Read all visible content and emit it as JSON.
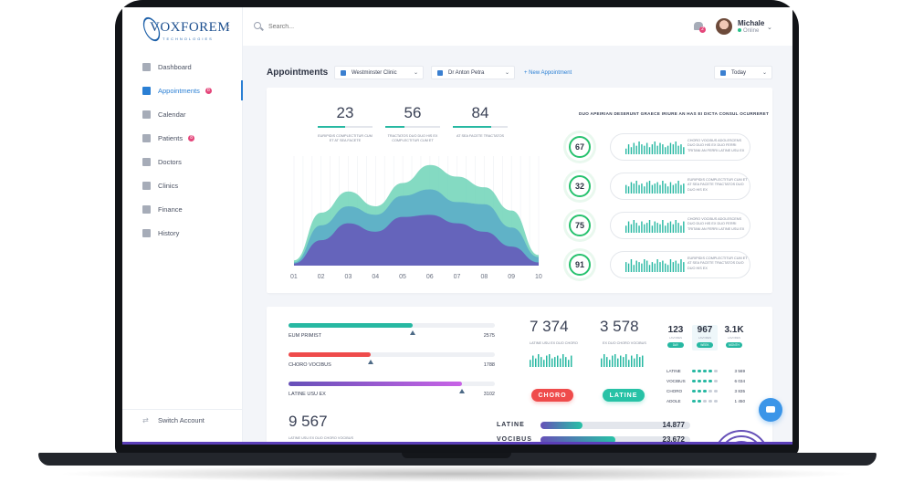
{
  "app": {
    "logo_text": "VOXFOREM",
    "logo_sub": "TECHNOLOGIES"
  },
  "sidebar": {
    "items": [
      {
        "label": "Dashboard",
        "icon": "dashboard-icon"
      },
      {
        "label": "Appointments",
        "icon": "alarm-clock-icon",
        "badge": "8",
        "active": true
      },
      {
        "label": "Calendar",
        "icon": "calendar-icon"
      },
      {
        "label": "Patients",
        "icon": "users-icon",
        "badge": "8"
      },
      {
        "label": "Doctors",
        "icon": "doctor-icon"
      },
      {
        "label": "Clinics",
        "icon": "building-icon"
      },
      {
        "label": "Finance",
        "icon": "chart-icon"
      },
      {
        "label": "History",
        "icon": "document-icon"
      }
    ],
    "switch_account": "Switch Account"
  },
  "topbar": {
    "search_placeholder": "Search...",
    "notification_count": "2",
    "user_name": "Michale",
    "user_status": "Online"
  },
  "toolbar": {
    "title": "Appointments",
    "clinic": "Westminster Clinic",
    "doctor": "Dr Anton Petra",
    "new_appointment": "+ New Appointment",
    "date_range": "Today"
  },
  "kpis": [
    {
      "value": "23",
      "progress": 0.5,
      "label": "EURIPIDIS COMPLECTITUR CUM ET AT SEA FACETE"
    },
    {
      "value": "56",
      "progress": 0.35,
      "label": "TRACTATOS DUO DUO HIS EX COMPLECTITUR CUM ET"
    },
    {
      "value": "84",
      "progress": 0.7,
      "label": "AT SEA FACETE TRACTATOS"
    }
  ],
  "chart_data": {
    "type": "area",
    "categories": [
      "01",
      "02",
      "03",
      "04",
      "05",
      "06",
      "07",
      "08",
      "09",
      "10"
    ],
    "series": [
      {
        "color": "#6fd3b7",
        "values": [
          5,
          50,
          70,
          56,
          78,
          95,
          84,
          74,
          52,
          10
        ]
      },
      {
        "color": "#58a8c8",
        "values": [
          3,
          38,
          56,
          48,
          66,
          72,
          60,
          58,
          36,
          8
        ]
      },
      {
        "color": "#6650b8",
        "values": [
          2,
          24,
          40,
          32,
          46,
          48,
          40,
          32,
          18,
          3
        ]
      }
    ],
    "ylim": [
      0,
      100
    ]
  },
  "right_panel": {
    "title": "DUO APEIRIAN DESERUNT GRAECE IRIURE AN HAS EI DICTA CONSUL OCURRERET",
    "rows": [
      {
        "score": "67",
        "spark": [
          4,
          7,
          5,
          8,
          6,
          9,
          7,
          6,
          8,
          5,
          7,
          9,
          6,
          8,
          7,
          5,
          6,
          8,
          7,
          9,
          6,
          7,
          5
        ],
        "text": "CHORO VOCIBUS ADOLESCENS DUO DUO HIS EX DUO FERRI TRITANI AN FERRI LATINE USU EX"
      },
      {
        "score": "32",
        "spark": [
          6,
          5,
          8,
          7,
          9,
          6,
          7,
          5,
          8,
          9,
          6,
          7,
          8,
          6,
          9,
          7,
          5,
          8,
          6,
          7,
          9,
          6,
          7
        ],
        "text": "EURIPIDIS COMPLECTITUR CUM ET AT SEA FACETE TRACTATOS DUO DUO HIS EX"
      },
      {
        "score": "75",
        "spark": [
          5,
          8,
          6,
          9,
          7,
          5,
          8,
          6,
          7,
          9,
          5,
          8,
          7,
          6,
          9,
          5,
          7,
          8,
          6,
          9,
          7,
          5,
          8
        ],
        "text": "CHORO VOCIBUS ADOLESCENS DUO DUO HIS EX DUO FERRI TRITANI AN FERRI LATINE USU EX"
      },
      {
        "score": "91",
        "spark": [
          7,
          6,
          9,
          5,
          8,
          7,
          6,
          9,
          8,
          5,
          7,
          6,
          9,
          7,
          8,
          6,
          5,
          9,
          7,
          8,
          6,
          9,
          7
        ],
        "text": "EURIPIDIS COMPLECTITUR CUM ET AT SEA FACETE TRACTATOS DUO DUO HIS EX"
      }
    ]
  },
  "progress_bars": [
    {
      "label": "EUM PRIMIST",
      "value": "2575",
      "fill": 0.6,
      "marker": 0.6,
      "color": "#27b8a2"
    },
    {
      "label": "CHORO VOCIBUS",
      "value": "1788",
      "fill": 0.4,
      "marker": 0.4,
      "color": "#ef4b4b"
    },
    {
      "label": "LATINE USU EX",
      "value": "3102",
      "fill": 0.84,
      "marker": 0.84,
      "color": "linear-gradient(90deg,#6650b8,#c863e6)"
    }
  ],
  "stats": {
    "a": {
      "value": "7 374",
      "label": "LATINE USU EX DUO CHORO",
      "button": "CHORO",
      "color": "#ef4b4b"
    },
    "b": {
      "value": "3 578",
      "label": "EX DUO CHORO VOCIBUS",
      "button": "LATINE",
      "color": "#27c2a6"
    },
    "c": {
      "value": "9 567",
      "label": "LATINE USU EX DUO CHORO VOCIBUS"
    }
  },
  "mini_kpis": [
    {
      "value": "123",
      "label": "LAVORES",
      "badge": "DAY"
    },
    {
      "value": "967",
      "label": "LAVORES",
      "badge": "WEEK",
      "selected": true
    },
    {
      "value": "3.1K",
      "label": "LAVORES",
      "badge": "MONTH"
    }
  ],
  "dot_rows": [
    {
      "label": "LATINE",
      "on": 4,
      "value": "3 569"
    },
    {
      "label": "VOCIBUS",
      "on": 4,
      "value": "6 034"
    },
    {
      "label": "CHORO",
      "on": 3,
      "value": "3 835"
    },
    {
      "label": "ADOLE",
      "on": 2,
      "value": "1 450"
    }
  ],
  "latine_bars": [
    {
      "label": "LATINE",
      "value": "14.877",
      "fill": 0.28,
      "color": "linear-gradient(90deg,#6650b8,#27c2a6)"
    },
    {
      "label": "VOCIBUS",
      "value": "23.672",
      "fill": 0.5,
      "color": "linear-gradient(90deg,#6650b8,#27c2a6)"
    }
  ]
}
